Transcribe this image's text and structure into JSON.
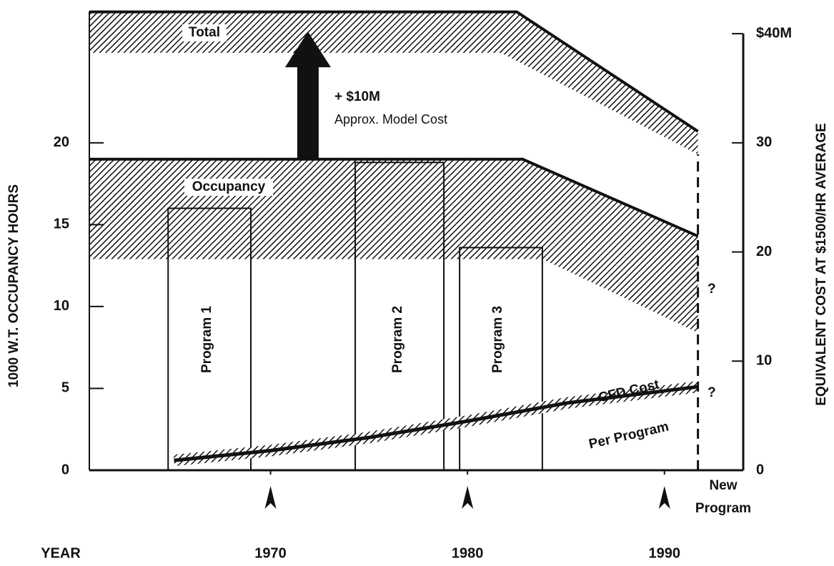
{
  "chart_data": {
    "type": "band",
    "xlabel": "YEAR",
    "ylabel": "1000 W.T. OCCUPANCY HOURS",
    "y2label": "EQUIVALENT COST AT $1500/HR AVERAGE",
    "xlim": [
      1960.8,
      1994.0
    ],
    "xticks": [
      1970,
      1980,
      1990
    ],
    "ylim": [
      0,
      28.2
    ],
    "yticks": [
      0,
      5,
      10,
      15,
      20
    ],
    "y2lim": [
      0,
      42.3
    ],
    "y2ticks": [
      0,
      10,
      20,
      30,
      {
        "value": 40,
        "label": "$40M"
      }
    ],
    "bands": [
      {
        "name": "Total",
        "upper_x": [
          1960.8,
          1982.5,
          1991.7
        ],
        "upper": [
          28.0,
          28.0,
          20.7
        ],
        "lower_x": [
          1960.8,
          1981.7,
          1991.7
        ],
        "lower": [
          25.5,
          25.5,
          19.3
        ]
      },
      {
        "name": "Occupancy",
        "upper_x": [
          1960.8,
          1982.8,
          1991.7
        ],
        "upper": [
          19.0,
          19.0,
          14.3
        ],
        "lower_x": [
          1960.8,
          1983.8,
          1991.7
        ],
        "lower": [
          12.9,
          12.9,
          8.4
        ]
      }
    ],
    "programs": [
      {
        "name": "Program 1",
        "start": 1964.8,
        "end": 1969.0,
        "value": 16.0
      },
      {
        "name": "Program 2",
        "start": 1974.3,
        "end": 1978.8,
        "value": 18.8
      },
      {
        "name": "Program 3",
        "start": 1979.6,
        "end": 1983.8,
        "value": 13.6
      }
    ],
    "series": [
      {
        "name": "CFD Cost",
        "x": [
          1965.1,
          1970,
          1975,
          1980,
          1985,
          1991.7
        ],
        "values": [
          0.6,
          1.2,
          2.0,
          3.0,
          4.1,
          5.1
        ]
      }
    ],
    "series_note": "Per Program",
    "model_cost": {
      "x": 1971.9,
      "from": 19.0,
      "to": 26.8,
      "label": [
        "+ $10M",
        "Approx. Model Cost"
      ]
    },
    "milestones": [
      1970,
      1980,
      1990
    ],
    "new_program": {
      "x": 1991.7,
      "label": [
        "New",
        "Program"
      ]
    },
    "question_marks": [
      "?",
      "?"
    ]
  }
}
